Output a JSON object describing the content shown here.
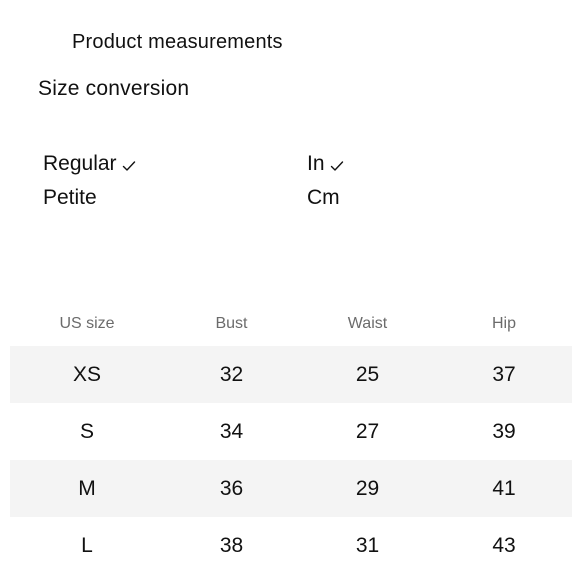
{
  "header": {
    "tab_title": "Product measurements",
    "section_title": "Size conversion"
  },
  "fit_options": [
    {
      "label": "Regular",
      "selected": true
    },
    {
      "label": "Petite",
      "selected": false
    }
  ],
  "unit_options": [
    {
      "label": "In",
      "selected": true
    },
    {
      "label": "Cm",
      "selected": false
    }
  ],
  "table": {
    "headers": [
      "US size",
      "Bust",
      "Waist",
      "Hip"
    ],
    "rows": [
      [
        "XS",
        "32",
        "25",
        "37"
      ],
      [
        "S",
        "34",
        "27",
        "39"
      ],
      [
        "M",
        "36",
        "29",
        "41"
      ],
      [
        "L",
        "38",
        "31",
        "43"
      ]
    ]
  },
  "colors": {
    "text": "#111111",
    "header_text": "#6b6b6b",
    "row_shade": "#f4f4f4",
    "background": "#ffffff"
  },
  "icons": {
    "selected_marker": "checkmark-icon"
  }
}
